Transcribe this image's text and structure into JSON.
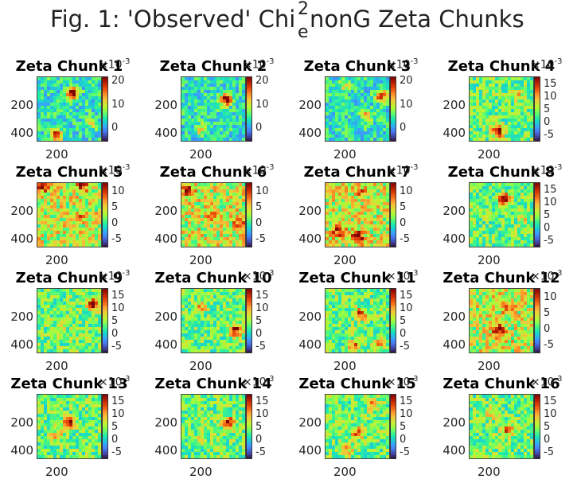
{
  "figure": {
    "title_pre": "Fig. 1: 'Observed' Chi",
    "title_sup": "2",
    "title_sub": "e",
    "title_post": " nonG Zeta Chunks"
  },
  "colormap": [
    "#30123b",
    "#4145ab",
    "#4675ed",
    "#39a2fc",
    "#1bcfd4",
    "#24eca6",
    "#61fc6c",
    "#a4fc3b",
    "#d1e834",
    "#f3c63a",
    "#fe9b2d",
    "#f36315",
    "#d93806",
    "#b11901",
    "#7a0403"
  ],
  "chart_data": [
    {
      "type": "heatmap",
      "title": "Zeta Chunk 1",
      "exponent": "-3",
      "yticks": [
        "200",
        "400"
      ],
      "xticks": [
        "200"
      ],
      "cbar_ticks": [
        "0",
        "10",
        "20"
      ],
      "clim": [
        -5,
        22
      ],
      "hotspots": [
        {
          "x": 0.55,
          "y": 0.25,
          "v": 22
        },
        {
          "x": 0.3,
          "y": 0.92,
          "v": 20
        },
        {
          "x": 0.82,
          "y": 0.72,
          "v": 10
        }
      ]
    },
    {
      "type": "heatmap",
      "title": "Zeta Chunk 2",
      "exponent": "-3",
      "yticks": [
        "200",
        "400"
      ],
      "xticks": [
        "200"
      ],
      "cbar_ticks": [
        "0",
        "10",
        "20"
      ],
      "clim": [
        -5,
        22
      ],
      "hotspots": [
        {
          "x": 0.7,
          "y": 0.35,
          "v": 22
        },
        {
          "x": 0.3,
          "y": 0.82,
          "v": 12
        }
      ]
    },
    {
      "type": "heatmap",
      "title": "Zeta Chunk 3",
      "exponent": "-3",
      "yticks": [
        "200",
        "400"
      ],
      "xticks": [
        "200"
      ],
      "cbar_ticks": [
        "0",
        "10",
        "20"
      ],
      "clim": [
        -5,
        22
      ],
      "hotspots": [
        {
          "x": 0.88,
          "y": 0.3,
          "v": 18
        },
        {
          "x": 0.65,
          "y": 0.6,
          "v": 14
        },
        {
          "x": 0.3,
          "y": 0.15,
          "v": 10
        }
      ]
    },
    {
      "type": "heatmap",
      "title": "Zeta Chunk 4",
      "exponent": "-3",
      "yticks": [
        "200",
        "400"
      ],
      "xticks": [
        "200"
      ],
      "cbar_ticks": [
        "-5",
        "0",
        "5",
        "10",
        "15"
      ],
      "clim": [
        -7,
        18
      ],
      "hotspots": [
        {
          "x": 0.45,
          "y": 0.85,
          "v": 17
        },
        {
          "x": 0.75,
          "y": 0.3,
          "v": 8
        }
      ]
    },
    {
      "type": "heatmap",
      "title": "Zeta Chunk 5",
      "exponent": "-3",
      "yticks": [
        "200",
        "400"
      ],
      "xticks": [
        "200"
      ],
      "cbar_ticks": [
        "-5",
        "0",
        "5",
        "10"
      ],
      "clim": [
        -7,
        13
      ],
      "hotspots": [
        {
          "x": 0.1,
          "y": 0.05,
          "v": 12
        },
        {
          "x": 0.7,
          "y": 0.05,
          "v": 10
        },
        {
          "x": 0.65,
          "y": 0.55,
          "v": 7
        }
      ]
    },
    {
      "type": "heatmap",
      "title": "Zeta Chunk 6",
      "exponent": "-3",
      "yticks": [
        "200",
        "400"
      ],
      "xticks": [
        "200"
      ],
      "cbar_ticks": [
        "-5",
        "0",
        "5",
        "10"
      ],
      "clim": [
        -7,
        13
      ],
      "hotspots": [
        {
          "x": 0.1,
          "y": 0.12,
          "v": 12
        },
        {
          "x": 0.92,
          "y": 0.6,
          "v": 10
        },
        {
          "x": 0.45,
          "y": 0.5,
          "v": 7
        }
      ]
    },
    {
      "type": "heatmap",
      "title": "Zeta Chunk 7",
      "exponent": "-3",
      "yticks": [
        "200",
        "400"
      ],
      "xticks": [
        "200"
      ],
      "cbar_ticks": [
        "-5",
        "0",
        "5",
        "10"
      ],
      "clim": [
        -7,
        13
      ],
      "hotspots": [
        {
          "x": 0.5,
          "y": 0.85,
          "v": 13
        },
        {
          "x": 0.2,
          "y": 0.75,
          "v": 11
        },
        {
          "x": 0.55,
          "y": 0.15,
          "v": 8
        }
      ]
    },
    {
      "type": "heatmap",
      "title": "Zeta Chunk 8",
      "exponent": "-3",
      "yticks": [
        "200",
        "400"
      ],
      "xticks": [
        "200"
      ],
      "cbar_ticks": [
        "-5",
        "0",
        "5",
        "10",
        "15"
      ],
      "clim": [
        -7,
        18
      ],
      "hotspots": [
        {
          "x": 0.55,
          "y": 0.25,
          "v": 17
        },
        {
          "x": 0.85,
          "y": 0.55,
          "v": 7
        }
      ]
    },
    {
      "type": "heatmap",
      "title": "Zeta Chunk 9",
      "exponent": "-3",
      "yticks": [
        "200",
        "400"
      ],
      "xticks": [
        "200"
      ],
      "cbar_ticks": [
        "-5",
        "0",
        "5",
        "10",
        "15"
      ],
      "clim": [
        -7,
        18
      ],
      "hotspots": [
        {
          "x": 0.88,
          "y": 0.25,
          "v": 17
        },
        {
          "x": 0.35,
          "y": 0.7,
          "v": 8
        }
      ]
    },
    {
      "type": "heatmap",
      "title": "Zeta Chunk 10",
      "exponent": "-3",
      "yticks": [
        "200",
        "400"
      ],
      "xticks": [
        "200"
      ],
      "cbar_ticks": [
        "-5",
        "0",
        "5",
        "10",
        "15"
      ],
      "clim": [
        -7,
        18
      ],
      "hotspots": [
        {
          "x": 0.85,
          "y": 0.65,
          "v": 16
        },
        {
          "x": 0.3,
          "y": 0.3,
          "v": 9
        }
      ]
    },
    {
      "type": "heatmap",
      "title": "Zeta Chunk 11",
      "exponent": "-3",
      "yticks": [
        "200",
        "400"
      ],
      "xticks": [
        "200"
      ],
      "cbar_ticks": [
        "-5",
        "0",
        "5",
        "10",
        "15"
      ],
      "clim": [
        -7,
        18
      ],
      "hotspots": [
        {
          "x": 0.55,
          "y": 0.4,
          "v": 14
        },
        {
          "x": 0.45,
          "y": 0.9,
          "v": 12
        },
        {
          "x": 0.85,
          "y": 0.85,
          "v": 10
        }
      ]
    },
    {
      "type": "heatmap",
      "title": "Zeta Chunk 12",
      "exponent": "-3",
      "yticks": [
        "200",
        "400"
      ],
      "xticks": [
        "200"
      ],
      "cbar_ticks": [
        "-5",
        "0",
        "5",
        "10"
      ],
      "clim": [
        -7,
        13
      ],
      "hotspots": [
        {
          "x": 0.45,
          "y": 0.65,
          "v": 13
        },
        {
          "x": 0.6,
          "y": 0.3,
          "v": 7
        }
      ]
    },
    {
      "type": "heatmap",
      "title": "Zeta Chunk 13",
      "exponent": "-3",
      "yticks": [
        "200",
        "400"
      ],
      "xticks": [
        "200"
      ],
      "cbar_ticks": [
        "-5",
        "0",
        "5",
        "10",
        "15"
      ],
      "clim": [
        -7,
        18
      ],
      "hotspots": [
        {
          "x": 0.5,
          "y": 0.45,
          "v": 17
        },
        {
          "x": 0.3,
          "y": 0.65,
          "v": 9
        }
      ]
    },
    {
      "type": "heatmap",
      "title": "Zeta Chunk 14",
      "exponent": "-3",
      "yticks": [
        "200",
        "400"
      ],
      "xticks": [
        "200"
      ],
      "cbar_ticks": [
        "-5",
        "0",
        "5",
        "10",
        "15"
      ],
      "clim": [
        -7,
        18
      ],
      "hotspots": [
        {
          "x": 0.75,
          "y": 0.45,
          "v": 17
        },
        {
          "x": 0.3,
          "y": 0.7,
          "v": 8
        }
      ]
    },
    {
      "type": "heatmap",
      "title": "Zeta Chunk 15",
      "exponent": "-3",
      "yticks": [
        "200",
        "400"
      ],
      "xticks": [
        "200"
      ],
      "cbar_ticks": [
        "-5",
        "0",
        "5",
        "10",
        "15"
      ],
      "clim": [
        -7,
        18
      ],
      "hotspots": [
        {
          "x": 0.5,
          "y": 0.6,
          "v": 13
        },
        {
          "x": 0.75,
          "y": 0.15,
          "v": 11
        },
        {
          "x": 0.35,
          "y": 0.85,
          "v": 9
        }
      ]
    },
    {
      "type": "heatmap",
      "title": "Zeta Chunk 16",
      "exponent": "-3",
      "yticks": [
        "200",
        "400"
      ],
      "xticks": [
        "200"
      ],
      "cbar_ticks": [
        "-5",
        "0",
        "5",
        "10",
        "15"
      ],
      "clim": [
        -7,
        18
      ],
      "hotspots": [
        {
          "x": 0.6,
          "y": 0.55,
          "v": 12
        },
        {
          "x": 0.35,
          "y": 0.3,
          "v": 9
        }
      ]
    }
  ]
}
